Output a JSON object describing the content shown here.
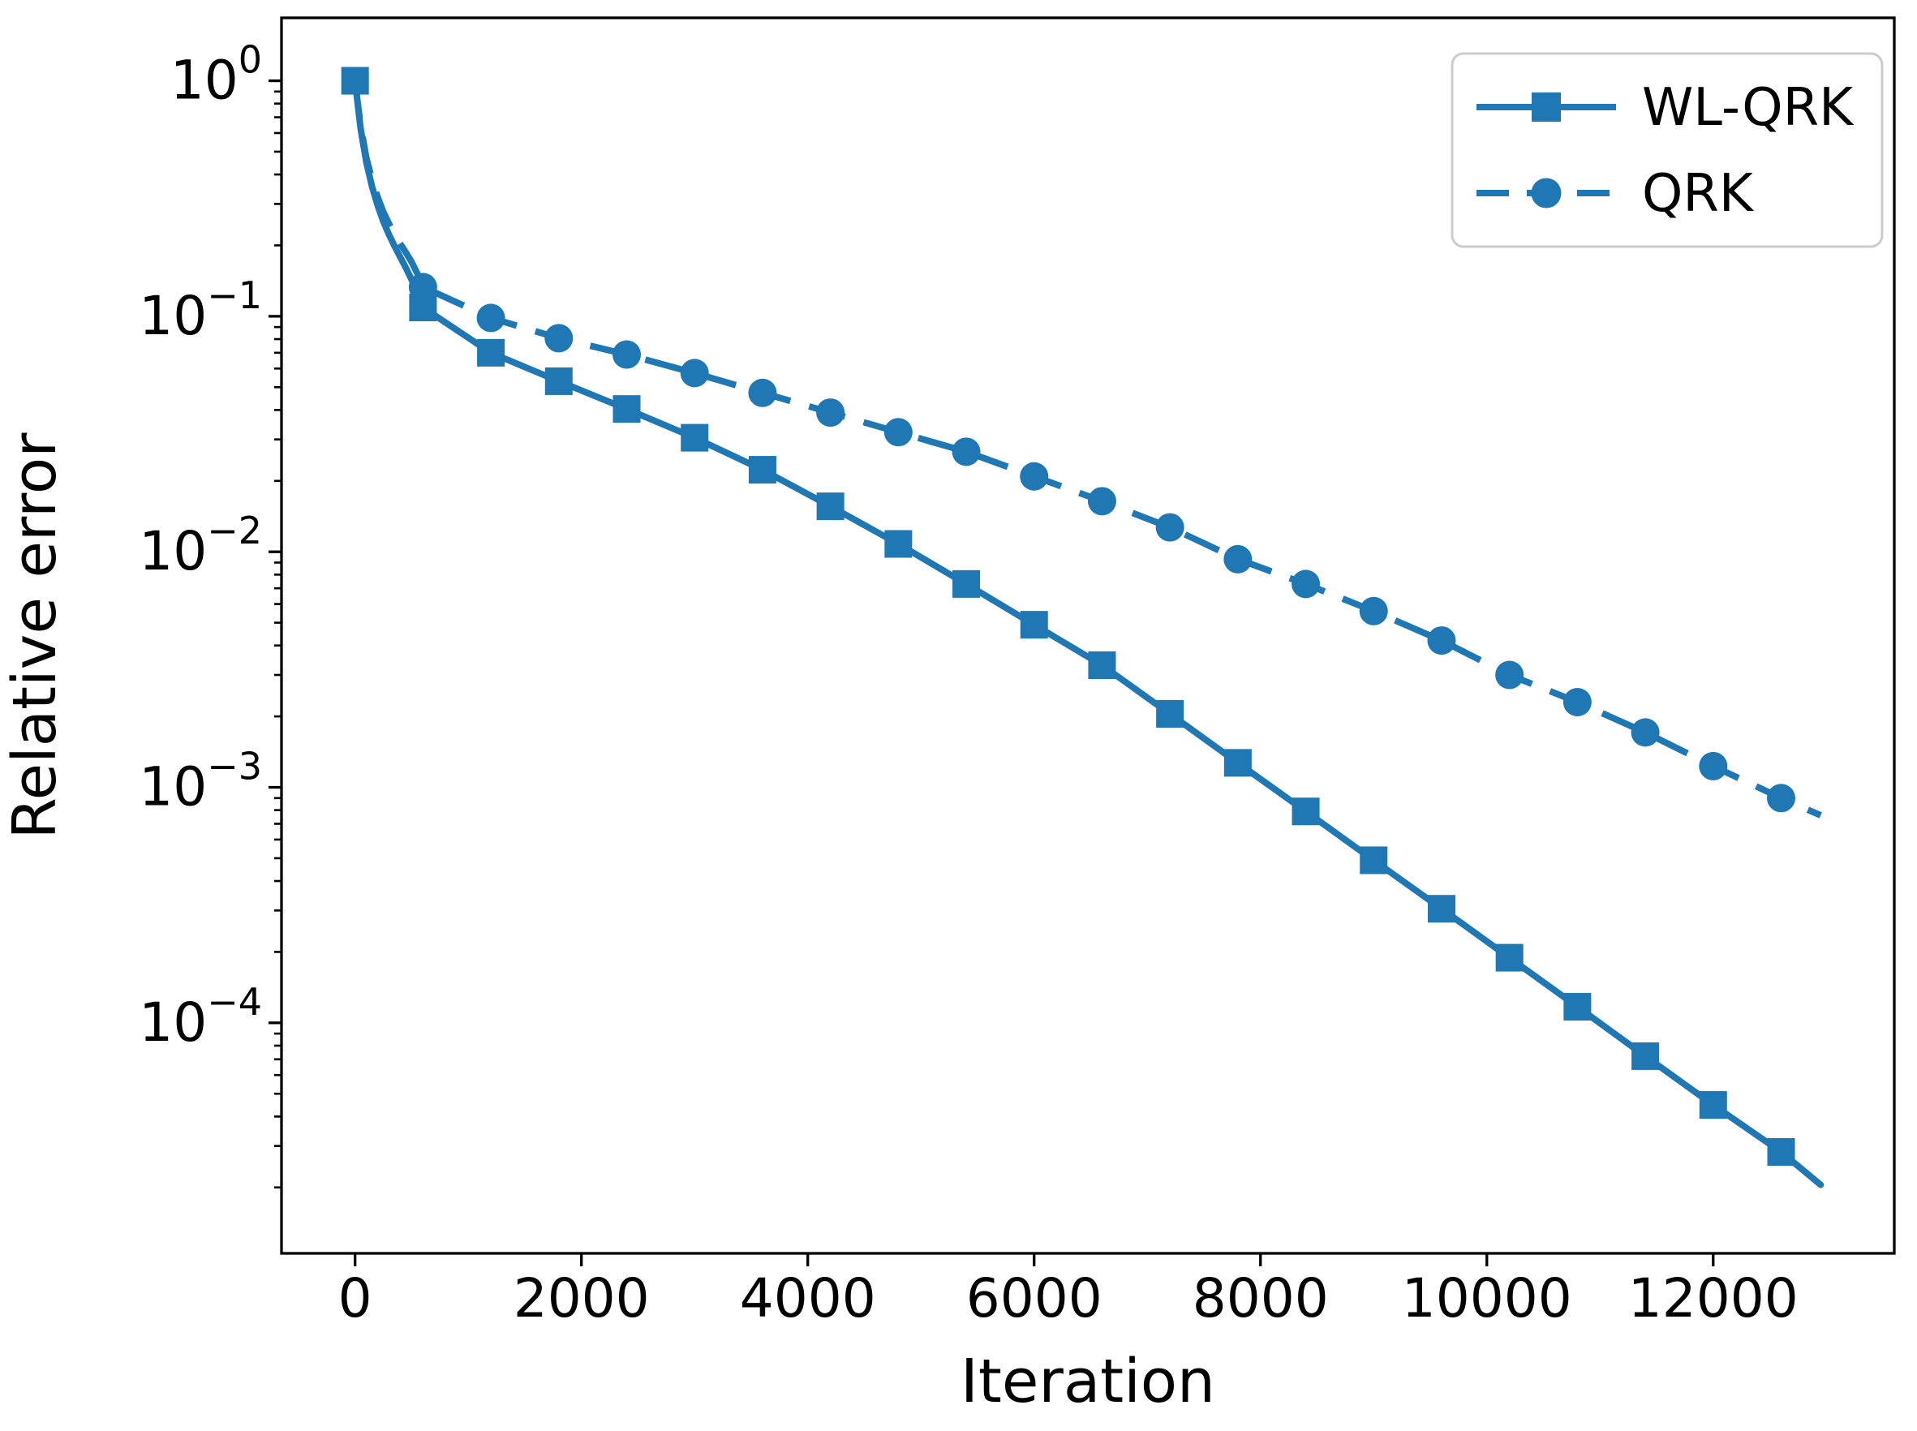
{
  "figure": {
    "background": "#ffffff",
    "accent_color": "#1f77b4",
    "spine_color": "#000000",
    "legend_border_color": "#cccccc"
  },
  "chart_data": {
    "type": "line",
    "title": "",
    "xlabel": "Iteration",
    "ylabel": "Relative error",
    "y_scale": "log",
    "grid": false,
    "legend_position": "upper right",
    "xlim": [
      -650,
      13600
    ],
    "ylim": [
      1.05e-05,
      1.85
    ],
    "x_ticks": [
      0,
      2000,
      4000,
      6000,
      8000,
      10000,
      12000
    ],
    "y_tick_exponents": [
      0,
      -1,
      -2,
      -3,
      -4
    ],
    "series": [
      {
        "name": "QRK",
        "line_style": "dashed",
        "marker": "circle",
        "color": "#1f77b4",
        "marker_x": [
          600,
          1200,
          1800,
          2400,
          3000,
          3600,
          4200,
          4800,
          5400,
          6000,
          6600,
          7200,
          7800,
          8400,
          9000,
          9600,
          10200,
          10800,
          11400,
          12000,
          12600
        ],
        "marker_y": [
          0.133,
          0.0984,
          0.0807,
          0.0688,
          0.0574,
          0.0473,
          0.039,
          0.0322,
          0.0266,
          0.0209,
          0.0164,
          0.0127,
          0.0093,
          0.0073,
          0.0056,
          0.0042,
          0.003,
          0.0023,
          0.00171,
          0.00123,
          0.0009
        ],
        "line_x": [
          0,
          20,
          50,
          100,
          150,
          200,
          250,
          300,
          350,
          400,
          450,
          500,
          550,
          600,
          1200,
          1800,
          2400,
          3000,
          3600,
          4200,
          4800,
          5400,
          6000,
          6600,
          7200,
          7800,
          8400,
          9000,
          9600,
          10200,
          10800,
          11400,
          12000,
          12600,
          12950
        ],
        "line_y": [
          1.0,
          0.83,
          0.64,
          0.47,
          0.38,
          0.32,
          0.277,
          0.247,
          0.223,
          0.203,
          0.186,
          0.17,
          0.152,
          0.133,
          0.0984,
          0.0807,
          0.0688,
          0.0574,
          0.0473,
          0.039,
          0.0322,
          0.0266,
          0.0209,
          0.0164,
          0.0127,
          0.0093,
          0.0073,
          0.0056,
          0.0042,
          0.003,
          0.0023,
          0.00171,
          0.00123,
          0.0009,
          0.00076
        ]
      },
      {
        "name": "WL-QRK",
        "line_style": "solid",
        "marker": "square",
        "color": "#1f77b4",
        "marker_x": [
          0,
          600,
          1200,
          1800,
          2400,
          3000,
          3600,
          4200,
          4800,
          5400,
          6000,
          6600,
          7200,
          7800,
          8400,
          9000,
          9600,
          10200,
          10800,
          11400,
          12000,
          12600
        ],
        "marker_y": [
          1.0,
          0.109,
          0.07,
          0.053,
          0.0404,
          0.0305,
          0.0223,
          0.0156,
          0.0108,
          0.0073,
          0.0049,
          0.0033,
          0.00205,
          0.00127,
          0.00079,
          0.00049,
          0.000305,
          0.000189,
          0.000117,
          7.22e-05,
          4.48e-05,
          2.83e-05
        ],
        "line_x": [
          0,
          20,
          50,
          100,
          150,
          200,
          250,
          300,
          350,
          400,
          450,
          500,
          550,
          600,
          1200,
          1800,
          2400,
          3000,
          3600,
          4200,
          4800,
          5400,
          6000,
          6600,
          7200,
          7800,
          8400,
          9000,
          9600,
          10200,
          10800,
          11400,
          12000,
          12600,
          12950
        ],
        "line_y": [
          1.0,
          0.82,
          0.62,
          0.45,
          0.355,
          0.295,
          0.252,
          0.222,
          0.198,
          0.178,
          0.16,
          0.143,
          0.125,
          0.109,
          0.07,
          0.053,
          0.0404,
          0.0305,
          0.0223,
          0.0156,
          0.0108,
          0.0073,
          0.0049,
          0.0033,
          0.00205,
          0.00127,
          0.00079,
          0.00049,
          0.000305,
          0.000189,
          0.000117,
          7.22e-05,
          4.48e-05,
          2.83e-05,
          2.05e-05
        ]
      }
    ],
    "legend_entries": [
      {
        "label": "WL-QRK",
        "line_style": "solid",
        "marker": "square"
      },
      {
        "label": "QRK",
        "line_style": "dashed",
        "marker": "circle"
      }
    ]
  }
}
